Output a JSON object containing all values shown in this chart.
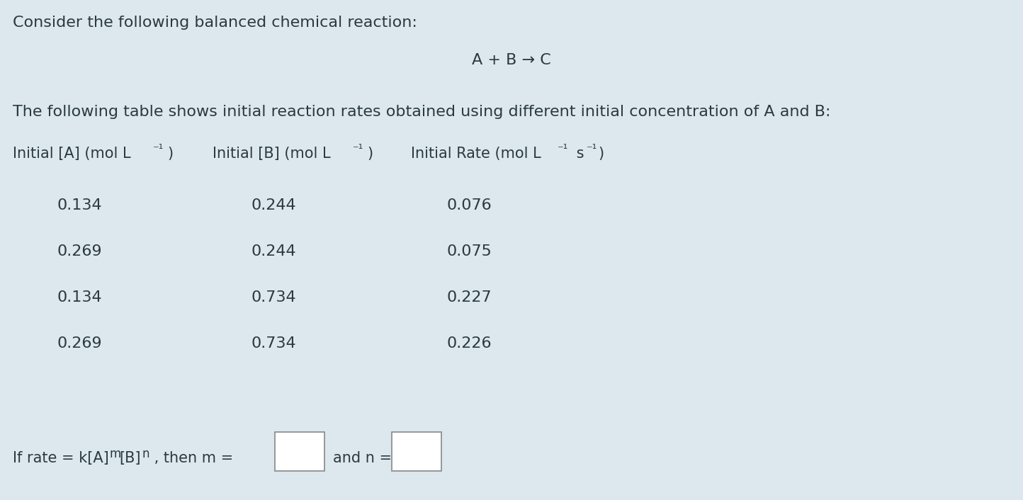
{
  "background_color": "#dce8ed",
  "title_text": "Consider the following balanced chemical reaction:",
  "reaction_text": "A + B → C",
  "desc_text": "The following table shows initial reaction rates obtained using different initial concentration of A and B:",
  "table_data": [
    [
      "0.134",
      "0.244",
      "0.076"
    ],
    [
      "0.269",
      "0.244",
      "0.075"
    ],
    [
      "0.134",
      "0.734",
      "0.227"
    ],
    [
      "0.269",
      "0.734",
      "0.226"
    ]
  ],
  "text_color": "#2a3a3f",
  "font_size_title": 16,
  "font_size_reaction": 16,
  "font_size_desc": 16,
  "font_size_header": 15,
  "font_size_data": 16,
  "font_size_footer": 15
}
